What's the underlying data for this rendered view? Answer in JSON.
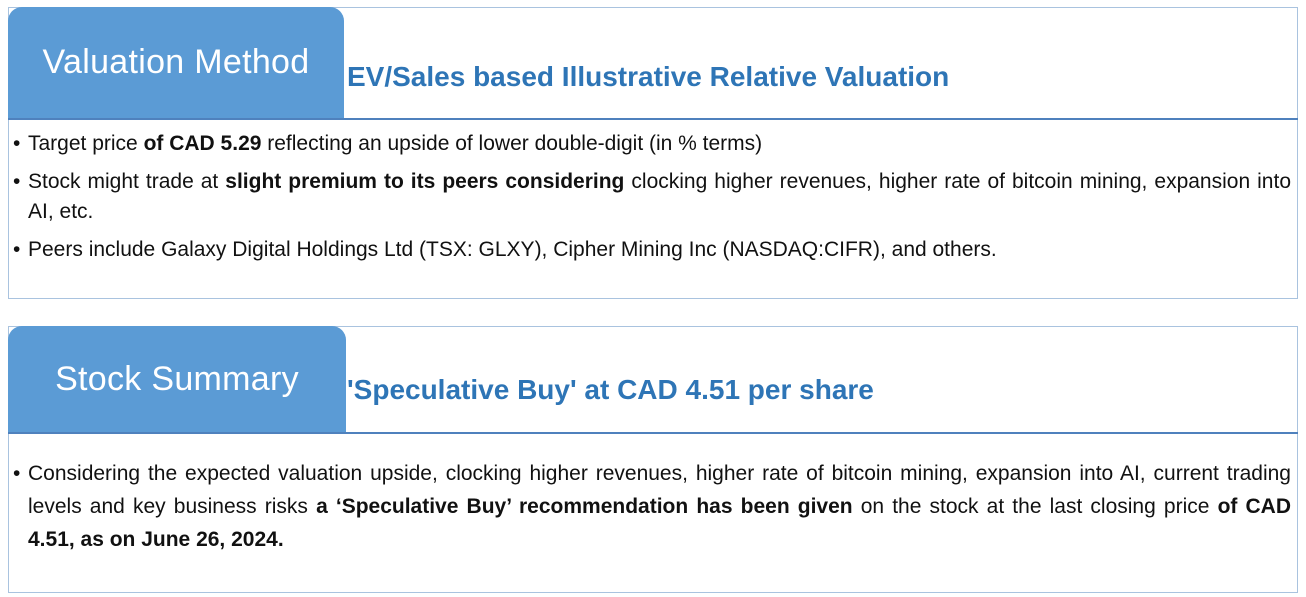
{
  "valuation": {
    "tab_label": "Valuation Method",
    "subtitle": "EV/Sales based Illustrative Relative Valuation",
    "bullets": [
      {
        "t1": "Target price ",
        "b1": "of CAD 5.29",
        "t2": " reflecting an upside of lower double-digit (in % terms)"
      },
      {
        "t1": "Stock might trade at ",
        "b1": "slight premium to its peers considering",
        "t2": " clocking higher revenues, higher rate of bitcoin mining, expansion into AI, etc."
      },
      {
        "t1": "Peers include Galaxy Digital Holdings Ltd (TSX: GLXY), Cipher Mining Inc (NASDAQ:CIFR), and others."
      }
    ]
  },
  "summary": {
    "tab_label": "Stock Summary",
    "subtitle": "'Speculative Buy' at CAD 4.51 per share",
    "bullet": {
      "t1": "Considering the expected valuation upside, clocking higher revenues, higher rate of bitcoin mining, expansion into AI, current trading levels and key business risks ",
      "b1": "a ‘Speculative Buy’ recommendation has been given",
      "t2": " on the stock at the last closing price ",
      "b2": "of CAD 4.51, as on June 26, 2024."
    }
  },
  "colors": {
    "tab_background": "#5b9bd5",
    "subtitle_text": "#2e75b6",
    "rule": "#4f81bd",
    "border": "#a9c3df"
  }
}
